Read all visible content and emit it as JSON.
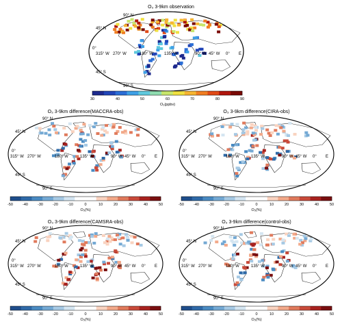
{
  "figure": {
    "panels": [
      {
        "id": "obs",
        "title": "O₃ 3-9km observation",
        "colorbar": {
          "ticks": [
            "30",
            "40",
            "50",
            "60",
            "70",
            "80",
            "90"
          ],
          "label": "O₃(ppbv)",
          "colors": [
            "#1e2a8e",
            "#2145b8",
            "#2b6ed6",
            "#3ea0e6",
            "#5fc8dd",
            "#8fdcb0",
            "#c8e66c",
            "#f0e040",
            "#f6b431",
            "#f07d22",
            "#e04a17",
            "#b0160d",
            "#7a0a06"
          ]
        }
      },
      {
        "id": "maccra",
        "title": "O₃ 3-9km difference(MACCRA-obs)"
      },
      {
        "id": "cira",
        "title": "O₃ 3-9km difference(CIRA-obs)"
      },
      {
        "id": "camsra",
        "title": "O₃ 3-9km difference(CAMSRA-obs)"
      },
      {
        "id": "control",
        "title": "O₃ 3-9km difference(control-obs)"
      }
    ],
    "map_labels": {
      "lat": [
        "90° N",
        "45° N",
        "0°",
        "45° S",
        "90° S"
      ],
      "lon": [
        "315° W",
        "270° W",
        "180° W",
        "135° W",
        "90° W",
        "45° W",
        "0°",
        "E"
      ]
    },
    "diff_colorbar": {
      "ticks": [
        "-50",
        "-40",
        "-30",
        "-20",
        "-10",
        "0",
        "10",
        "20",
        "30",
        "40",
        "50"
      ],
      "label": "O₃(%)",
      "colors": [
        "#1f4e8c",
        "#2f6aa8",
        "#4a8bc2",
        "#74a9d4",
        "#a6c9e4",
        "#d4e5f1",
        "#ffffff",
        "#ffffff",
        "#f9d3c0",
        "#f2a98a",
        "#e07a5c",
        "#c94a3a",
        "#a8221f",
        "#7a0f10"
      ]
    }
  }
}
